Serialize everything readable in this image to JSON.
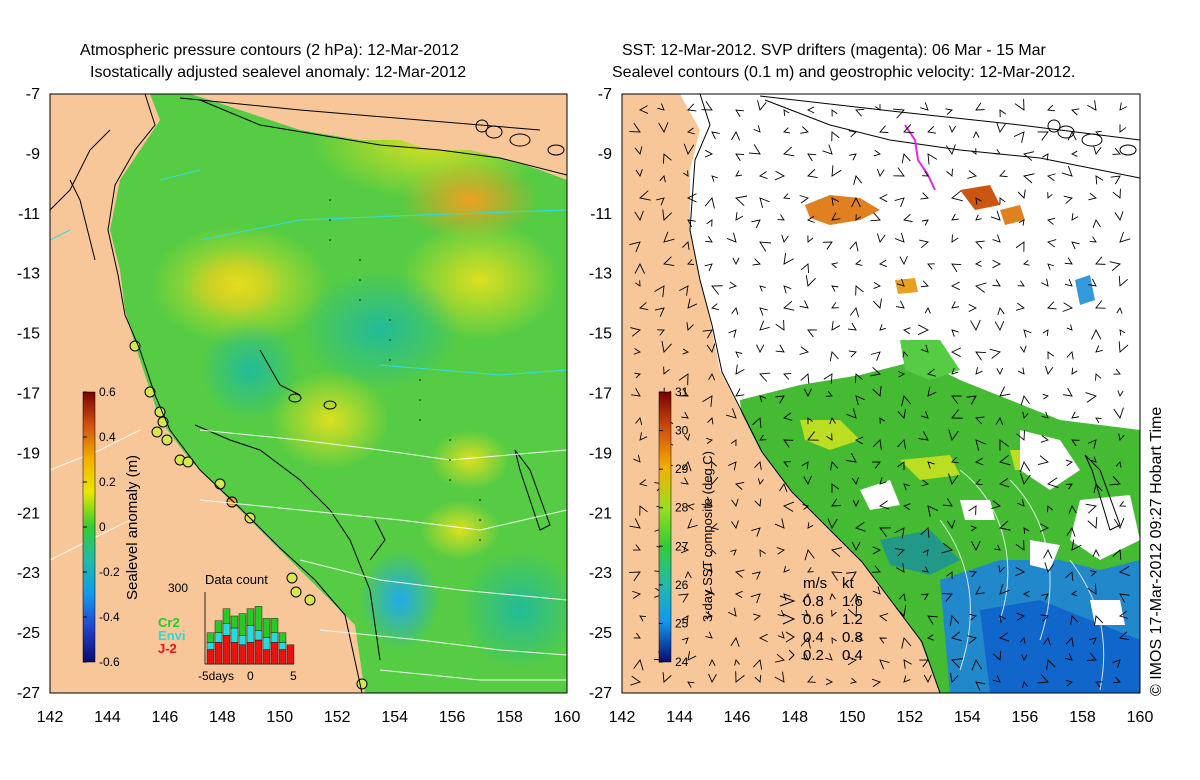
{
  "left_panel": {
    "title_line1": "Atmospheric pressure contours (2 hPa): 12-Mar-2012",
    "title_line2": "Isostatically adjusted sealevel anomaly: 12-Mar-2012",
    "y_ticks": [
      "-7",
      "-9",
      "-11",
      "-13",
      "-15",
      "-17",
      "-19",
      "-21",
      "-23",
      "-25",
      "-27"
    ],
    "x_ticks": [
      "142",
      "144",
      "146",
      "148",
      "150",
      "152",
      "154",
      "156",
      "158",
      "160"
    ],
    "colorbar": {
      "label": "Sealevel anomaly (m)",
      "ticks": [
        "0.6",
        "0.4",
        "0.2",
        "0",
        "-0.2",
        "-0.4",
        "-0.6"
      ]
    },
    "data_count": {
      "title": "Data count",
      "y_tick": "300",
      "x_ticks": [
        "-5days",
        "0",
        "5"
      ],
      "legend": [
        {
          "label": "Cr2",
          "color": "#22cc22"
        },
        {
          "label": "Envi",
          "color": "#22dddd"
        },
        {
          "label": "J-2",
          "color": "#ee1111"
        }
      ],
      "bars": [
        {
          "cr2": 40,
          "envi": 30,
          "j2": 60
        },
        {
          "cr2": 50,
          "envi": 40,
          "j2": 90
        },
        {
          "cr2": 60,
          "envi": 50,
          "j2": 120
        },
        {
          "cr2": 50,
          "envi": 60,
          "j2": 90
        },
        {
          "cr2": 90,
          "envi": 40,
          "j2": 80
        },
        {
          "cr2": 70,
          "envi": 70,
          "j2": 90
        },
        {
          "cr2": 100,
          "envi": 40,
          "j2": 100
        },
        {
          "cr2": 80,
          "envi": 50,
          "j2": 60
        },
        {
          "cr2": 60,
          "envi": 40,
          "j2": 90
        },
        {
          "cr2": 40,
          "envi": 30,
          "j2": 60
        },
        {
          "cr2": 0,
          "envi": 0,
          "j2": 80
        }
      ]
    }
  },
  "right_panel": {
    "title_line1": "SST: 12-Mar-2012. SVP drifters (magenta): 06 Mar - 15 Mar",
    "title_line2": "Sealevel contours (0.1 m) and geostrophic velocity: 12-Mar-2012.",
    "y_ticks": [
      "-7",
      "-9",
      "-11",
      "-13",
      "-15",
      "-17",
      "-19",
      "-21",
      "-23",
      "-25",
      "-27"
    ],
    "x_ticks": [
      "142",
      "144",
      "146",
      "148",
      "150",
      "152",
      "154",
      "156",
      "158",
      "160"
    ],
    "colorbar": {
      "label": "3-day SST composite (deg C)",
      "ticks": [
        "31",
        "30",
        "29",
        "28",
        "27",
        "26",
        "25",
        "24"
      ]
    },
    "velocity_legend": {
      "header_ms": "m/s",
      "header_kt": "kt",
      "rows": [
        {
          "ms": "0.8",
          "kt": "1.6"
        },
        {
          "ms": "0.6",
          "kt": "1.2"
        },
        {
          "ms": "0.4",
          "kt": "0.8"
        },
        {
          "ms": "0.2",
          "kt": "0.4"
        }
      ]
    }
  },
  "credit": "© IMOS 17-Mar-2012 09:27 Hobart Time",
  "colors": {
    "land": "#f7c79a",
    "ocean_green": "#5bd34a",
    "sst_white": "#ffffff"
  }
}
